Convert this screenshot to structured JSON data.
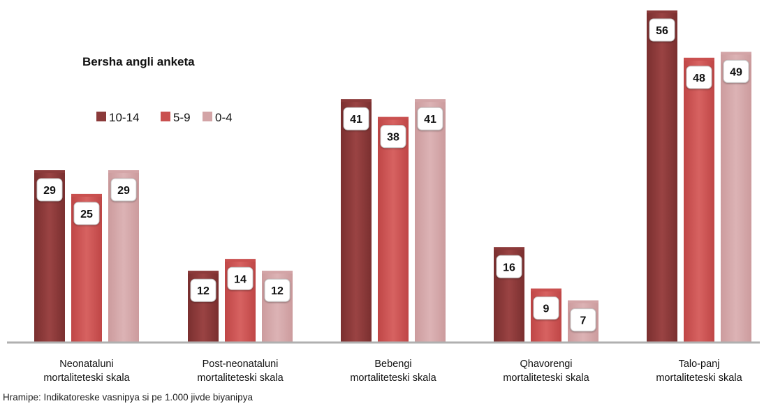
{
  "chart_data": {
    "type": "bar",
    "title": "",
    "legend_title": "Bersha angli anketa",
    "legend_position": "top-left",
    "categories": [
      [
        "Neonataluni",
        "mortaliteteski skala"
      ],
      [
        "Post-neonataluni",
        "mortaliteteski skala"
      ],
      [
        "Bebengi",
        "mortaliteteski skala"
      ],
      [
        "Qhavorengi",
        "mortaliteteski skala"
      ],
      [
        "Talo-panj",
        "mortaliteteski skala"
      ]
    ],
    "series": [
      {
        "name": "10-14",
        "color": "#8b3a3a",
        "values": [
          29,
          12,
          41,
          16,
          56
        ]
      },
      {
        "name": "5-9",
        "color": "#c9504f",
        "values": [
          25,
          14,
          38,
          9,
          48
        ]
      },
      {
        "name": "0-4",
        "color": "#d3a4a6",
        "values": [
          29,
          12,
          41,
          7,
          49
        ]
      }
    ],
    "ylim": [
      0,
      56
    ],
    "grid": false,
    "source": "Hramipe: Indikatoreske vasnipya si pe 1.000 jivde biyanipya"
  }
}
